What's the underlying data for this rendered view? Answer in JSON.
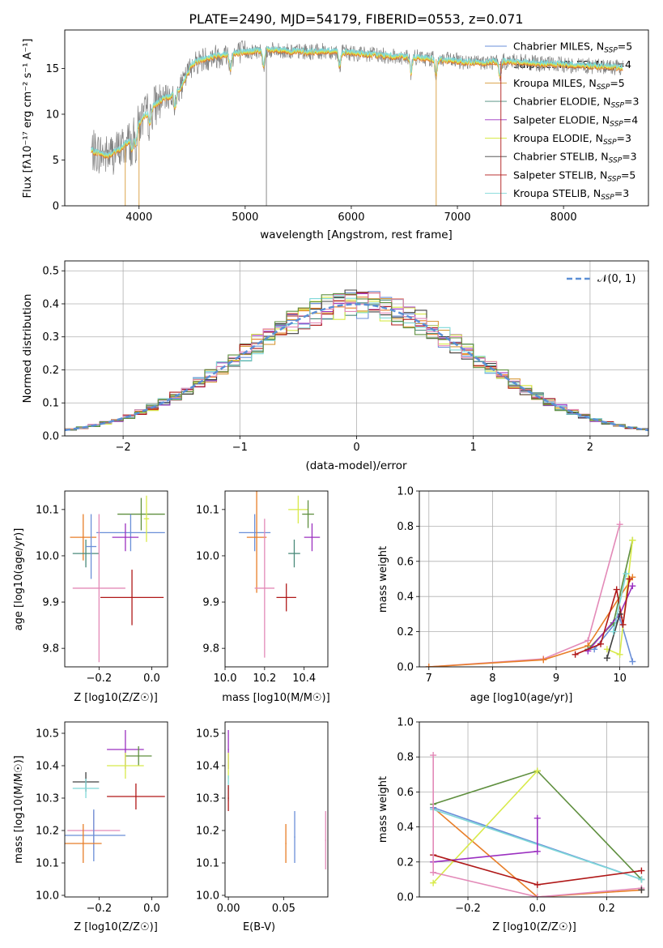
{
  "figure_title": "PLATE=2490, MJD=54179, FIBERID=0553, z=0.071",
  "colors": {
    "chabrier_miles": "#6a8fd8",
    "salpeter_miles": "#e87e28",
    "kroupa_miles": "#d79a3a",
    "chabrier_elodie": "#4a8a7a",
    "salpeter_elodie": "#9b30c0",
    "kroupa_elodie": "#d8ea4a",
    "chabrier_stelib": "#404040",
    "salpeter_stelib": "#b01818",
    "kroupa_stelib": "#7fd8d8",
    "pink": "#e38ab8",
    "green": "#5f8f3f",
    "gray": "#7f7f7f",
    "normal_curve": "#5b8fd6"
  },
  "chart_data": [
    {
      "type": "line",
      "title": "PLATE=2490, MJD=54179, FIBERID=0553, z=0.071",
      "xlabel": "wavelength [Angstrom, rest frame]",
      "ylabel": "Flux [fλ10⁻¹⁷ erg cm⁻² s⁻¹ A⁻¹]",
      "xlim": [
        3300,
        8800
      ],
      "ylim": [
        0,
        19.2
      ],
      "xticks": [
        4000,
        5000,
        6000,
        7000,
        8000
      ],
      "yticks": [
        0,
        5,
        10,
        15
      ],
      "legend_position": "upper-right",
      "legend": [
        "Chabrier MILES, N_SSP=5",
        "Salpeter MILES, N_SSP=4",
        "Kroupa MILES, N_SSP=5",
        "Chabrier ELODIE, N_SSP=3",
        "Salpeter ELODIE, N_SSP=4",
        "Kroupa ELODIE, N_SSP=3",
        "Chabrier STELIB, N_SSP=3",
        "Salpeter STELIB, N_SSP=5",
        "Kroupa STELIB, N_SSP=3"
      ],
      "spectrum_continuum": {
        "x": [
          3550,
          3700,
          3800,
          3900,
          4000,
          4100,
          4200,
          4300,
          4400,
          4500,
          4600,
          4700,
          4800,
          5000,
          5200,
          5400,
          5600,
          5800,
          6000,
          6200,
          6400,
          6600,
          6800,
          7000,
          7200,
          7400,
          7600,
          7800,
          8000,
          8200,
          8400,
          8560
        ],
        "y": [
          6.0,
          5.5,
          6.0,
          7.0,
          9.0,
          10.5,
          11.5,
          12.0,
          13.0,
          15.5,
          16.0,
          16.3,
          16.5,
          16.8,
          17.0,
          16.9,
          16.8,
          16.9,
          16.7,
          16.5,
          16.3,
          16.2,
          16.0,
          15.8,
          15.6,
          15.8,
          15.7,
          15.5,
          15.4,
          15.3,
          15.2,
          15.1
        ]
      },
      "absorption_lines_x": [
        3934,
        3969,
        4102,
        4340,
        4861,
        5175,
        5890,
        6563,
        6800,
        7400
      ],
      "grid": false
    },
    {
      "type": "histogram",
      "xlabel": "(data-model)/error",
      "ylabel": "Normed distribution",
      "xlim": [
        -2.5,
        2.5
      ],
      "ylim": [
        0,
        0.53
      ],
      "xticks": [
        -2,
        -1,
        0,
        1,
        2
      ],
      "yticks": [
        0.0,
        0.1,
        0.2,
        0.3,
        0.4,
        0.5
      ],
      "legend": [
        "𝒩(0, 1)"
      ],
      "legend_position": "upper-right",
      "bin_width": 0.1,
      "bin_start": -2.5,
      "grid": true
    },
    {
      "type": "scatter",
      "xlabel": "Z [log10(Z/Z☉)]",
      "ylabel": "age  [log10(age/yr)]",
      "xlim": [
        -0.33,
        0.06
      ],
      "ylim": [
        9.76,
        10.14
      ],
      "xticks": [
        -0.2,
        0.0
      ],
      "yticks": [
        9.8,
        9.9,
        10.0,
        10.1
      ],
      "points": [
        {
          "x": -0.04,
          "y": 10.09,
          "xerr": 0.09,
          "yerr": 0.035,
          "color": "green"
        },
        {
          "x": -0.08,
          "y": 10.05,
          "xerr": 0.13,
          "yerr": 0.04,
          "color": "chabrier_miles"
        },
        {
          "x": -0.26,
          "y": 10.04,
          "xerr": 0.05,
          "yerr": 0.05,
          "color": "salpeter_miles"
        },
        {
          "x": -0.1,
          "y": 10.04,
          "xerr": 0.05,
          "yerr": 0.03,
          "color": "salpeter_elodie"
        },
        {
          "x": -0.25,
          "y": 10.005,
          "xerr": 0.05,
          "yerr": 0.03,
          "color": "chabrier_elodie"
        },
        {
          "x": -0.02,
          "y": 10.08,
          "xerr": 0.01,
          "yerr": 0.05,
          "color": "kroupa_elodie"
        },
        {
          "x": -0.23,
          "y": 10.02,
          "xerr": 0.02,
          "yerr": 0.07,
          "color": "chabrier_miles"
        },
        {
          "x": -0.075,
          "y": 9.91,
          "xerr": 0.12,
          "yerr": 0.06,
          "color": "salpeter_stelib"
        },
        {
          "x": -0.2,
          "y": 9.93,
          "xerr": 0.1,
          "yerr": 0.16,
          "color": "pink"
        }
      ]
    },
    {
      "type": "scatter",
      "xlabel": "mass [log10(M/M☉)]",
      "ylabel": "",
      "xlim": [
        10.0,
        10.52
      ],
      "ylim": [
        9.76,
        10.14
      ],
      "xticks": [
        10.0,
        10.2,
        10.4
      ],
      "yticks": [
        9.8,
        9.9,
        10.0,
        10.1
      ],
      "points": [
        {
          "x": 10.15,
          "y": 10.05,
          "xerr": 0.08,
          "yerr": 0.04,
          "color": "chabrier_miles"
        },
        {
          "x": 10.16,
          "y": 10.04,
          "xerr": 0.05,
          "yerr": 0.12,
          "color": "salpeter_miles"
        },
        {
          "x": 10.44,
          "y": 10.04,
          "xerr": 0.04,
          "yerr": 0.03,
          "color": "salpeter_elodie"
        },
        {
          "x": 10.37,
          "y": 10.1,
          "xerr": 0.05,
          "yerr": 0.03,
          "color": "kroupa_elodie"
        },
        {
          "x": 10.35,
          "y": 10.005,
          "xerr": 0.03,
          "yerr": 0.03,
          "color": "chabrier_elodie"
        },
        {
          "x": 10.42,
          "y": 10.09,
          "xerr": 0.03,
          "yerr": 0.03,
          "color": "green"
        },
        {
          "x": 10.31,
          "y": 9.91,
          "xerr": 0.05,
          "yerr": 0.03,
          "color": "salpeter_stelib"
        },
        {
          "x": 10.2,
          "y": 9.93,
          "xerr": 0.05,
          "yerr": 0.15,
          "color": "pink"
        }
      ]
    },
    {
      "type": "line",
      "xlabel": "age  [log10(age/yr)]",
      "ylabel": "mass weight",
      "xlim": [
        6.85,
        10.45
      ],
      "ylim": [
        0,
        1.0
      ],
      "xticks": [
        7,
        8,
        9,
        10
      ],
      "yticks": [
        0.0,
        0.2,
        0.4,
        0.6,
        0.8,
        1.0
      ],
      "grid": true,
      "series": [
        {
          "color": "pink",
          "x": [
            7.0,
            8.8,
            9.5,
            10.0
          ],
          "y": [
            0.0,
            0.045,
            0.15,
            0.81
          ]
        },
        {
          "color": "salpeter_miles",
          "x": [
            7.0,
            8.8,
            9.5,
            10.2
          ],
          "y": [
            0.0,
            0.04,
            0.12,
            0.51
          ]
        },
        {
          "color": "chabrier_miles",
          "x": [
            9.6,
            10.0,
            10.2
          ],
          "y": [
            0.1,
            0.28,
            0.03
          ]
        },
        {
          "color": "green",
          "x": [
            9.5,
            9.9,
            10.2
          ],
          "y": [
            0.1,
            0.25,
            0.72
          ]
        },
        {
          "color": "kroupa_elodie",
          "x": [
            9.8,
            10.0,
            10.2
          ],
          "y": [
            0.1,
            0.07,
            0.72
          ]
        },
        {
          "color": "salpeter_elodie",
          "x": [
            9.5,
            10.0,
            10.2
          ],
          "y": [
            0.09,
            0.3,
            0.46
          ]
        },
        {
          "color": "salpeter_stelib",
          "x": [
            9.3,
            9.7,
            9.95,
            10.05,
            10.15
          ],
          "y": [
            0.07,
            0.13,
            0.44,
            0.24,
            0.5
          ]
        },
        {
          "color": "chabrier_stelib",
          "x": [
            9.8,
            10.0
          ],
          "y": [
            0.05,
            0.3
          ]
        },
        {
          "color": "kroupa_stelib",
          "x": [
            9.9,
            10.1
          ],
          "y": [
            0.2,
            0.53
          ]
        }
      ]
    },
    {
      "type": "scatter",
      "xlabel": "Z [log10(Z/Z☉)]",
      "ylabel": "mass [log10(M/M☉)]",
      "xlim": [
        -0.33,
        0.06
      ],
      "ylim": [
        9.995,
        10.535
      ],
      "xticks": [
        -0.2,
        0.0
      ],
      "yticks": [
        10.0,
        10.1,
        10.2,
        10.3,
        10.4,
        10.5
      ],
      "points": [
        {
          "x": -0.1,
          "y": 10.45,
          "xerr": 0.07,
          "yerr": 0.06,
          "color": "salpeter_elodie"
        },
        {
          "x": -0.05,
          "y": 10.43,
          "xerr": 0.05,
          "yerr": 0.03,
          "color": "green"
        },
        {
          "x": -0.1,
          "y": 10.4,
          "xerr": 0.07,
          "yerr": 0.04,
          "color": "kroupa_elodie"
        },
        {
          "x": -0.25,
          "y": 10.35,
          "xerr": 0.05,
          "yerr": 0.03,
          "color": "chabrier_stelib"
        },
        {
          "x": -0.25,
          "y": 10.33,
          "xerr": 0.05,
          "yerr": 0.03,
          "color": "kroupa_stelib"
        },
        {
          "x": -0.06,
          "y": 10.305,
          "xerr": 0.11,
          "yerr": 0.04,
          "color": "salpeter_stelib"
        },
        {
          "x": -0.22,
          "y": 10.2,
          "xerr": 0.1,
          "yerr": 0.06,
          "color": "pink"
        },
        {
          "x": -0.22,
          "y": 10.185,
          "xerr": 0.12,
          "yerr": 0.08,
          "color": "chabrier_miles"
        },
        {
          "x": -0.26,
          "y": 10.16,
          "xerr": 0.07,
          "yerr": 0.06,
          "color": "salpeter_miles"
        }
      ]
    },
    {
      "type": "scatter",
      "xlabel": "E(B-V)",
      "ylabel": "",
      "xlim": [
        -0.003,
        0.09
      ],
      "ylim": [
        9.995,
        10.535
      ],
      "xticks": [
        0.0,
        0.05
      ],
      "yticks": [
        10.0,
        10.1,
        10.2,
        10.3,
        10.4,
        10.5
      ],
      "points": [
        {
          "x": 0.0,
          "y": 10.45,
          "xerr": 0,
          "yerr": 0.06,
          "color": "salpeter_elodie"
        },
        {
          "x": 0.0,
          "y": 10.4,
          "xerr": 0,
          "yerr": 0.04,
          "color": "kroupa_elodie"
        },
        {
          "x": 0.0,
          "y": 10.33,
          "xerr": 0,
          "yerr": 0.04,
          "color": "kroupa_stelib"
        },
        {
          "x": 0.0,
          "y": 10.3,
          "xerr": 0,
          "yerr": 0.04,
          "color": "salpeter_stelib"
        },
        {
          "x": 0.052,
          "y": 10.16,
          "xerr": 0,
          "yerr": 0.06,
          "color": "salpeter_miles"
        },
        {
          "x": 0.06,
          "y": 10.18,
          "xerr": 0,
          "yerr": 0.08,
          "color": "chabrier_miles"
        },
        {
          "x": 0.088,
          "y": 10.17,
          "xerr": 0,
          "yerr": 0.09,
          "color": "pink"
        }
      ]
    },
    {
      "type": "line",
      "xlabel": "Z [log10(Z/Z☉)]",
      "ylabel": "mass weight",
      "xlim": [
        -0.34,
        0.32
      ],
      "ylim": [
        0,
        1.0
      ],
      "xticks": [
        -0.2,
        0.0,
        0.2
      ],
      "yticks": [
        0.0,
        0.2,
        0.4,
        0.6,
        0.8,
        1.0
      ],
      "grid": true,
      "series": [
        {
          "color": "salpeter_miles",
          "x": [
            -0.3,
            0.0,
            0.3
          ],
          "y": [
            0.51,
            0.0,
            0.04
          ]
        },
        {
          "color": "chabrier_miles",
          "x": [
            -0.3,
            0.3
          ],
          "y": [
            0.51,
            0.1
          ]
        },
        {
          "color": "green",
          "x": [
            -0.3,
            0.0,
            0.0,
            0.3
          ],
          "y": [
            0.53,
            0.72,
            0.72,
            0.1
          ]
        },
        {
          "color": "kroupa_elodie",
          "x": [
            -0.3,
            0.0
          ],
          "y": [
            0.08,
            0.72
          ]
        },
        {
          "color": "kroupa_stelib",
          "x": [
            -0.3,
            0.3
          ],
          "y": [
            0.5,
            0.1
          ]
        },
        {
          "color": "salpeter_elodie",
          "x": [
            -0.3,
            0.0,
            0.0
          ],
          "y": [
            0.2,
            0.26,
            0.45
          ]
        },
        {
          "color": "salpeter_stelib",
          "x": [
            -0.3,
            0.0,
            0.3
          ],
          "y": [
            0.24,
            0.07,
            0.15
          ]
        },
        {
          "color": "pink",
          "x": [
            -0.3,
            -0.3,
            0.0,
            0.3
          ],
          "y": [
            0.81,
            0.14,
            0.0,
            0.05
          ]
        },
        {
          "color": "chabrier_stelib",
          "x": [
            0.3
          ],
          "y": [
            0.04
          ]
        }
      ]
    }
  ]
}
